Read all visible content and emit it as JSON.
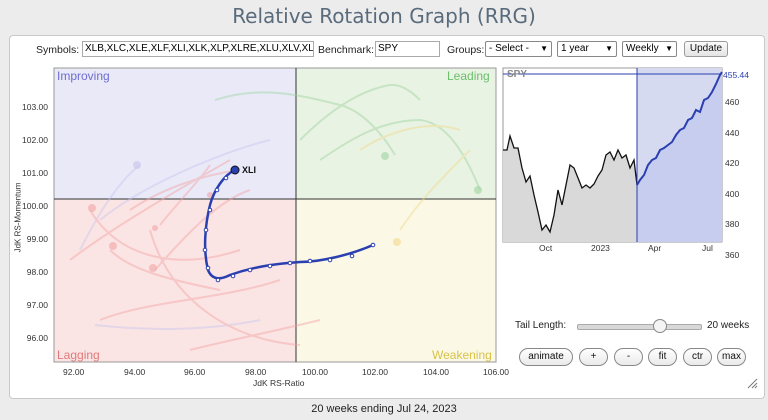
{
  "title": "Relative Rotation Graph (RRG)",
  "toolbar": {
    "symbols_label": "Symbols:",
    "symbols_value": "XLB,XLC,XLE,XLF,XLI,XLK,XLP,XLRE,XLU,XLV,XL",
    "benchmark_label": "Benchmark:",
    "benchmark_value": "SPY",
    "groups_label": "Groups:",
    "groups_value": "- Select -",
    "period_value": "1 year",
    "frequency_value": "Weekly",
    "update_label": "Update"
  },
  "rrg": {
    "quadrants": {
      "improving": "Improving",
      "leading": "Leading",
      "lagging": "Lagging",
      "weakening": "Weakening"
    },
    "quadrant_colors": {
      "improving": "#e9e9f8",
      "leading": "#e8f3e3",
      "lagging": "#fbe4e4",
      "weakening": "#fbf8e6"
    },
    "x_axis_label": "JdK RS-Ratio",
    "y_axis_label": "JdK RS-Momentum",
    "x_ticks": [
      "92.00",
      "94.00",
      "96.00",
      "98.00",
      "100.00",
      "102.00",
      "104.00",
      "106.00"
    ],
    "y_ticks": [
      "103.00",
      "102.00",
      "101.00",
      "100.00",
      "99.00",
      "98.00",
      "97.00",
      "96.00"
    ],
    "highlight_label": "XLI",
    "highlight_color": "#2a3fb0"
  },
  "spy_chart": {
    "label": "SPY",
    "last_value": "455.44",
    "y_ticks": [
      "460",
      "440",
      "420",
      "400",
      "380",
      "360"
    ],
    "x_ticks": [
      "Oct",
      "2023",
      "Apr",
      "Jul"
    ]
  },
  "controls": {
    "tail_length_label": "Tail Length:",
    "tail_length_value": "20 weeks",
    "animate": "animate",
    "plus": "+",
    "minus": "-",
    "fit": "fit",
    "ctr": "ctr",
    "max": "max"
  },
  "footer": "20 weeks ending Jul 24, 2023"
}
